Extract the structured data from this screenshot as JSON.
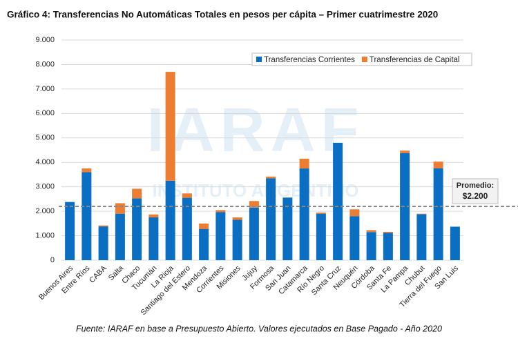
{
  "chart_data": {
    "type": "stacked_bar",
    "title": "Gráfico 4: Transferencias No Automáticas Totales en pesos per cápita – Primer cuatrimestre 2020",
    "source": "Fuente: IARAF en base a Presupuesto Abierto. Valores ejecutados en Base Pagado - Año 2020",
    "watermark": [
      "IARAF",
      "INSTITUTO ARGENTINO"
    ],
    "categories": [
      "Buenos Aires",
      "Entre Ríos",
      "CABA",
      "Salta",
      "Chaco",
      "Tucumán",
      "La Rioja",
      "Santiago del Estero",
      "Mendoza",
      "Corrientes",
      "Misiones",
      "Jujuy",
      "Formosa",
      "San Juan",
      "Catamarca",
      "Río Negro",
      "Santa Cruz",
      "Neuquén",
      "Córdoba",
      "Santa Fe",
      "La Pampa",
      "Chubut",
      "Tierra del Fuego",
      "San Luis"
    ],
    "series": [
      {
        "name": "Transferencias Corrientes",
        "color": "#0a6fc2",
        "values": [
          2380,
          3600,
          1380,
          1900,
          2530,
          1750,
          3250,
          2550,
          1280,
          1970,
          1650,
          2150,
          3350,
          2560,
          3750,
          1900,
          4800,
          1800,
          1150,
          1120,
          4380,
          1880,
          3760,
          1370
        ]
      },
      {
        "name": "Transferencias de Capital",
        "color": "#ed7d31",
        "values": [
          0,
          150,
          40,
          430,
          390,
          120,
          4450,
          180,
          220,
          80,
          100,
          270,
          70,
          0,
          400,
          50,
          0,
          280,
          80,
          40,
          100,
          20,
          270,
          0
        ]
      }
    ],
    "ylim": [
      0,
      9000
    ],
    "yticks": [
      0,
      {
        "value": 1000,
        "label": "1.000"
      },
      {
        "value": 2000,
        "label": "2.000"
      },
      {
        "value": 3000,
        "label": "3.000"
      },
      {
        "value": 4000,
        "label": "4.000"
      },
      {
        "value": 5000,
        "label": "5.000"
      },
      {
        "value": 6000,
        "label": "6.000"
      },
      {
        "value": 7000,
        "label": "7.000"
      },
      {
        "value": 8000,
        "label": "8.000"
      },
      {
        "value": 9000,
        "label": "9.000"
      }
    ],
    "grid": true,
    "legend": "top-right",
    "reference_line": {
      "label": "Promedio:",
      "value": 2200,
      "value_label": "$2.200"
    }
  }
}
